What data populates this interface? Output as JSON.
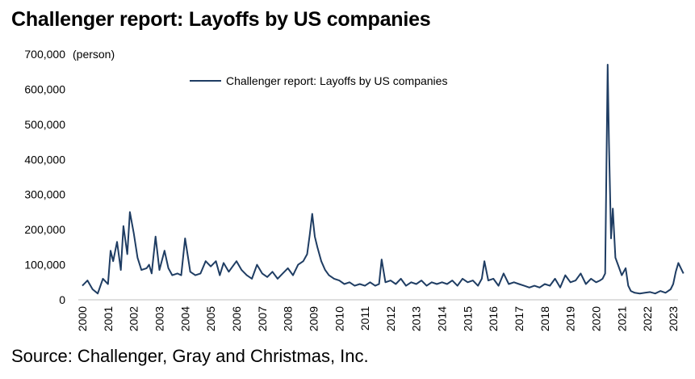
{
  "title": "Challenger report: Layoffs by US companies",
  "source": "Source: Challenger, Gray and Christmas, Inc.",
  "line_color": "#1f3d63",
  "chart_data": {
    "type": "line",
    "title": "Challenger report: Layoffs by US companies",
    "ylabel": "(person)",
    "ylim": [
      0,
      700000
    ],
    "yticks": [
      0,
      100000,
      200000,
      300000,
      400000,
      500000,
      600000,
      700000
    ],
    "ytick_labels": [
      "0",
      "100,000",
      "200,000",
      "300,000",
      "400,000",
      "500,000",
      "600,000",
      "700,000"
    ],
    "xticks": [
      "2000",
      "2001",
      "2002",
      "2003",
      "2004",
      "2005",
      "2006",
      "2007",
      "2008",
      "2009",
      "2010",
      "2011",
      "2012",
      "2013",
      "2014",
      "2015",
      "2016",
      "2017",
      "2018",
      "2019",
      "2020",
      "2021",
      "2022",
      "2023"
    ],
    "legend": {
      "position": "top-center",
      "entries": [
        "Challenger report: Layoffs by US companies"
      ]
    },
    "grid": false,
    "series": [
      {
        "name": "Challenger report: Layoffs by US companies",
        "x": [
          2000.0,
          2000.2,
          2000.4,
          2000.6,
          2000.8,
          2001.0,
          2001.1,
          2001.2,
          2001.35,
          2001.5,
          2001.6,
          2001.75,
          2001.85,
          2002.0,
          2002.15,
          2002.3,
          2002.5,
          2002.6,
          2002.7,
          2002.85,
          2003.0,
          2003.2,
          2003.35,
          2003.5,
          2003.7,
          2003.85,
          2004.0,
          2004.2,
          2004.4,
          2004.6,
          2004.8,
          2005.0,
          2005.2,
          2005.35,
          2005.5,
          2005.7,
          2005.85,
          2006.0,
          2006.2,
          2006.4,
          2006.6,
          2006.8,
          2007.0,
          2007.2,
          2007.4,
          2007.6,
          2007.8,
          2008.0,
          2008.2,
          2008.4,
          2008.6,
          2008.75,
          2008.85,
          2008.95,
          2009.05,
          2009.15,
          2009.3,
          2009.45,
          2009.6,
          2009.8,
          2010.0,
          2010.2,
          2010.4,
          2010.6,
          2010.8,
          2011.0,
          2011.2,
          2011.4,
          2011.55,
          2011.65,
          2011.8,
          2012.0,
          2012.2,
          2012.4,
          2012.6,
          2012.8,
          2013.0,
          2013.2,
          2013.4,
          2013.6,
          2013.8,
          2014.0,
          2014.2,
          2014.4,
          2014.6,
          2014.8,
          2015.0,
          2015.2,
          2015.4,
          2015.55,
          2015.65,
          2015.8,
          2016.0,
          2016.2,
          2016.4,
          2016.6,
          2016.8,
          2017.0,
          2017.2,
          2017.4,
          2017.6,
          2017.8,
          2018.0,
          2018.2,
          2018.4,
          2018.6,
          2018.8,
          2019.0,
          2019.2,
          2019.4,
          2019.6,
          2019.8,
          2020.0,
          2020.15,
          2020.25,
          2020.35,
          2020.45,
          2020.5,
          2020.58,
          2020.65,
          2020.75,
          2020.85,
          2021.0,
          2021.15,
          2021.25,
          2021.35,
          2021.5,
          2021.7,
          2021.9,
          2022.1,
          2022.3,
          2022.5,
          2022.7,
          2022.9,
          2023.0,
          2023.1,
          2023.2,
          2023.3,
          2023.4
        ],
        "values": [
          40000,
          55000,
          30000,
          18000,
          60000,
          45000,
          140000,
          110000,
          165000,
          85000,
          210000,
          130000,
          250000,
          190000,
          120000,
          85000,
          90000,
          100000,
          75000,
          180000,
          85000,
          140000,
          90000,
          70000,
          75000,
          70000,
          175000,
          80000,
          70000,
          75000,
          110000,
          95000,
          110000,
          70000,
          105000,
          80000,
          95000,
          110000,
          85000,
          70000,
          60000,
          100000,
          75000,
          65000,
          80000,
          60000,
          75000,
          90000,
          70000,
          100000,
          110000,
          130000,
          185000,
          245000,
          180000,
          150000,
          110000,
          85000,
          70000,
          60000,
          55000,
          45000,
          50000,
          40000,
          45000,
          40000,
          50000,
          40000,
          45000,
          115000,
          50000,
          55000,
          45000,
          60000,
          40000,
          50000,
          45000,
          55000,
          40000,
          50000,
          45000,
          50000,
          45000,
          55000,
          40000,
          60000,
          50000,
          55000,
          40000,
          60000,
          110000,
          55000,
          60000,
          40000,
          75000,
          45000,
          50000,
          45000,
          40000,
          35000,
          40000,
          35000,
          45000,
          40000,
          60000,
          35000,
          70000,
          50000,
          55000,
          75000,
          45000,
          60000,
          50000,
          55000,
          60000,
          75000,
          670000,
          450000,
          175000,
          260000,
          120000,
          100000,
          70000,
          90000,
          40000,
          25000,
          20000,
          18000,
          20000,
          22000,
          18000,
          25000,
          20000,
          30000,
          45000,
          80000,
          105000,
          90000,
          75000
        ]
      }
    ]
  }
}
